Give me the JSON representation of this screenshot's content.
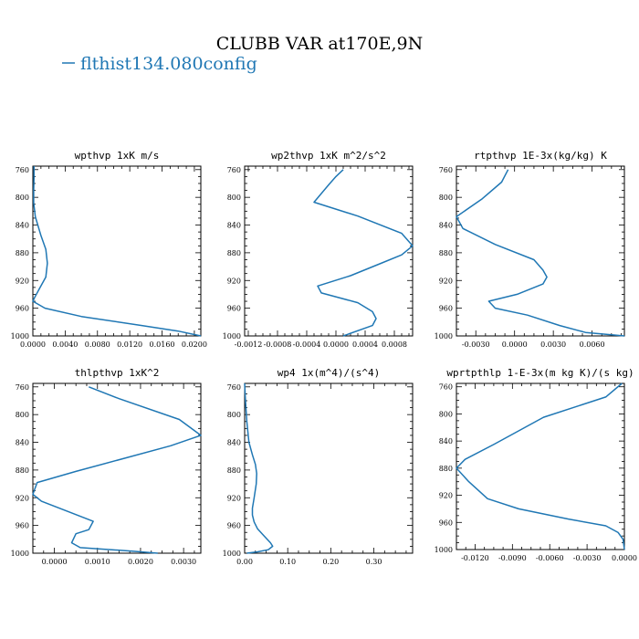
{
  "title": "CLUBB VAR at170E,9N",
  "legend": {
    "label": "flthist134.080config",
    "color": "#1f77b4"
  },
  "chart_data": [
    {
      "type": "line",
      "title": "wpthvp  1xK m/s",
      "xlim": [
        0,
        0.0208
      ],
      "ylim": [
        1000,
        755
      ],
      "xticks": [
        "0.0000",
        "0.0040",
        "0.0080",
        "0.0120",
        "0.0160",
        "0.0200"
      ],
      "xtick_values": [
        0,
        0.004,
        0.008,
        0.012,
        0.016,
        0.02
      ],
      "yticks": [
        "760",
        "800",
        "840",
        "880",
        "920",
        "960",
        "1000"
      ],
      "ytick_values": [
        760,
        800,
        840,
        880,
        920,
        960,
        1000
      ],
      "series": [
        {
          "name": "flthist134.080config",
          "color": "#1f77b4",
          "x": [
            0.00015,
            0.00015,
            0.0001,
            0.0001,
            0.0003,
            0.001,
            0.0016,
            0.0018,
            0.0016,
            0.0008,
            0.0002,
            0.0,
            0.0015,
            0.006,
            0.0135,
            0.018,
            0.0208
          ],
          "y": [
            755,
            770,
            790,
            808,
            828,
            855,
            875,
            895,
            915,
            932,
            945,
            950,
            960,
            972,
            985,
            993,
            1000
          ]
        }
      ]
    },
    {
      "type": "line",
      "title": "wp2thvp  1xK m^2/s^2",
      "xlim": [
        -0.00125,
        0.00105
      ],
      "ylim": [
        1000,
        755
      ],
      "xticks": [
        "-0.0012",
        "-0.0008",
        "-0.0004",
        "0.0000",
        "0.0004",
        "0.0008"
      ],
      "xtick_values": [
        -0.0012,
        -0.0008,
        -0.0004,
        0.0,
        0.0004,
        0.0008
      ],
      "yticks": [
        "760",
        "800",
        "840",
        "880",
        "920",
        "960",
        "1000"
      ],
      "ytick_values": [
        760,
        800,
        840,
        880,
        920,
        960,
        1000
      ],
      "series": [
        {
          "name": "flthist134.080config",
          "color": "#1f77b4",
          "x": [
            0.0001,
            0.0,
            -0.0001,
            -0.0003,
            0.0003,
            0.0009,
            0.00105,
            0.0009,
            0.0006,
            0.0002,
            -0.00025,
            -0.0002,
            0.0003,
            0.0005,
            0.00055,
            0.0005,
            0.0001
          ],
          "y": [
            760,
            770,
            782,
            807,
            827,
            852,
            870,
            883,
            896,
            913,
            928,
            938,
            952,
            965,
            975,
            985,
            1000
          ]
        }
      ]
    },
    {
      "type": "line",
      "title": "rtpthvp  1E-3x(kg/kg) K",
      "xlim": [
        -0.0045,
        0.0085
      ],
      "ylim": [
        1000,
        755
      ],
      "xticks": [
        "-0.0030",
        "0.0000",
        "0.0030",
        "0.0060"
      ],
      "xtick_values": [
        -0.003,
        0.0,
        0.003,
        0.006
      ],
      "yticks": [
        "760",
        "800",
        "840",
        "880",
        "920",
        "960",
        "1000"
      ],
      "ytick_values": [
        760,
        800,
        840,
        880,
        920,
        960,
        1000
      ],
      "series": [
        {
          "name": "flthist134.080config",
          "color": "#1f77b4",
          "x": [
            -0.0005,
            -0.001,
            -0.0025,
            -0.0045,
            -0.004,
            -0.0015,
            0.0015,
            0.0022,
            0.0025,
            0.0022,
            0.0002,
            -0.002,
            -0.0015,
            0.001,
            0.0035,
            0.0055,
            0.0085
          ],
          "y": [
            760,
            778,
            802,
            828,
            845,
            868,
            890,
            905,
            915,
            925,
            940,
            950,
            960,
            970,
            985,
            995,
            1000
          ]
        }
      ]
    },
    {
      "type": "line",
      "title": "thlpthvp   1xK^2",
      "xlim": [
        -0.0005,
        0.0034
      ],
      "ylim": [
        1000,
        755
      ],
      "xticks": [
        "0.0000",
        "0.0010",
        "0.0020",
        "0.0030"
      ],
      "xtick_values": [
        0.0,
        0.001,
        0.002,
        0.003
      ],
      "yticks": [
        "760",
        "800",
        "840",
        "880",
        "920",
        "960",
        "1000"
      ],
      "ytick_values": [
        760,
        800,
        840,
        880,
        920,
        960,
        1000
      ],
      "series": [
        {
          "name": "flthist134.080config",
          "color": "#1f77b4",
          "x": [
            0.0008,
            0.0015,
            0.0029,
            0.0034,
            0.0027,
            0.0005,
            -0.0004,
            -0.0005,
            -0.0003,
            0.0009,
            0.0008,
            0.0005,
            0.0004,
            0.0006,
            0.0018,
            0.0024
          ],
          "y": [
            760,
            777,
            807,
            830,
            845,
            882,
            898,
            915,
            925,
            954,
            966,
            972,
            985,
            992,
            997,
            1000
          ]
        }
      ]
    },
    {
      "type": "line",
      "title": "wp4  1x(m^4)/(s^4)",
      "xlim": [
        0,
        0.39
      ],
      "ylim": [
        1000,
        755
      ],
      "xticks": [
        "0.00",
        "0.10",
        "0.20",
        "0.30"
      ],
      "xtick_values": [
        0.0,
        0.1,
        0.2,
        0.3
      ],
      "yticks": [
        "760",
        "800",
        "840",
        "880",
        "920",
        "960",
        "1000"
      ],
      "ytick_values": [
        760,
        800,
        840,
        880,
        920,
        960,
        1000
      ],
      "series": [
        {
          "name": "flthist134.080config",
          "color": "#1f77b4",
          "x": [
            0.0,
            0.002,
            0.005,
            0.01,
            0.018,
            0.025,
            0.028,
            0.027,
            0.022,
            0.018,
            0.018,
            0.022,
            0.03,
            0.045,
            0.06,
            0.065,
            0.055,
            0.03,
            0.005
          ],
          "y": [
            755,
            780,
            810,
            840,
            858,
            872,
            885,
            900,
            920,
            935,
            945,
            955,
            965,
            975,
            985,
            990,
            995,
            998,
            1000
          ]
        }
      ]
    },
    {
      "type": "line",
      "title": "wprtpthlp  1-E-3x(m kg K)/(s kg)",
      "xlim": [
        -0.0135,
        0.0
      ],
      "ylim": [
        1000,
        755
      ],
      "xticks": [
        "-0.0120",
        "-0.0090",
        "-0.0060",
        "-0.0030",
        "0.0000"
      ],
      "xtick_values": [
        -0.012,
        -0.009,
        -0.006,
        -0.003,
        0.0
      ],
      "yticks": [
        "760",
        "800",
        "840",
        "880",
        "920",
        "960",
        "1000"
      ],
      "ytick_values": [
        760,
        800,
        840,
        880,
        920,
        960,
        1000
      ],
      "series": [
        {
          "name": "flthist134.080config",
          "color": "#1f77b4",
          "x": [
            -0.0002,
            -0.0015,
            -0.0065,
            -0.0105,
            -0.0128,
            -0.0135,
            -0.0125,
            -0.011,
            -0.0085,
            -0.0045,
            -0.0015,
            -0.0005,
            -0.0001,
            0.0
          ],
          "y": [
            755,
            775,
            805,
            845,
            867,
            880,
            900,
            925,
            940,
            955,
            965,
            975,
            985,
            1000
          ]
        }
      ]
    }
  ]
}
